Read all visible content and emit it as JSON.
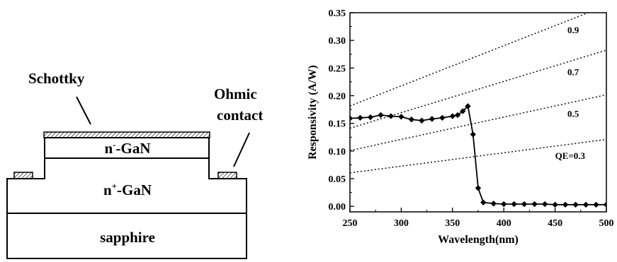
{
  "diagram": {
    "schottky_label": "Schottky",
    "ohmic_line1": "Ohmic",
    "ohmic_line2": "contact",
    "n_minus_base": "n",
    "n_minus_sup": "-",
    "n_minus_rest": "-GaN",
    "n_plus_base": "n",
    "n_plus_sup": "+",
    "n_plus_rest": "-GaN",
    "substrate_label": "sapphire"
  },
  "chart_data": {
    "type": "line",
    "xlabel": "Wavelength(nm)",
    "ylabel": "Responsivity (A/W)",
    "xlim": [
      250,
      500
    ],
    "ylim": [
      -0.01,
      0.35
    ],
    "xticks": [
      250,
      300,
      350,
      400,
      450,
      500
    ],
    "yticks": [
      0.0,
      0.05,
      0.1,
      0.15,
      0.2,
      0.25,
      0.3,
      0.35
    ],
    "ytick_labels": [
      "0.00",
      "0.05",
      "0.10",
      "0.15",
      "0.20",
      "0.25",
      "0.30",
      "0.35"
    ],
    "series": [
      {
        "marker": "diamond",
        "color": "#000000",
        "x": [
          250,
          260,
          270,
          280,
          290,
          300,
          310,
          320,
          330,
          340,
          350,
          355,
          360,
          365,
          370,
          375,
          380,
          390,
          400,
          410,
          420,
          430,
          440,
          450,
          460,
          470,
          480,
          490,
          500
        ],
        "y": [
          0.159,
          0.16,
          0.161,
          0.165,
          0.163,
          0.162,
          0.157,
          0.155,
          0.158,
          0.16,
          0.163,
          0.165,
          0.172,
          0.181,
          0.13,
          0.033,
          0.007,
          0.005,
          0.004,
          0.004,
          0.004,
          0.004,
          0.004,
          0.003,
          0.003,
          0.003,
          0.003,
          0.003,
          0.003
        ]
      }
    ],
    "qe_lines": [
      {
        "qe": 0.3,
        "label": "QE=0.3"
      },
      {
        "qe": 0.5,
        "label": "0.5"
      },
      {
        "qe": 0.7,
        "label": "0.7"
      },
      {
        "qe": 0.9,
        "label": "0.9"
      }
    ],
    "grid": false
  }
}
